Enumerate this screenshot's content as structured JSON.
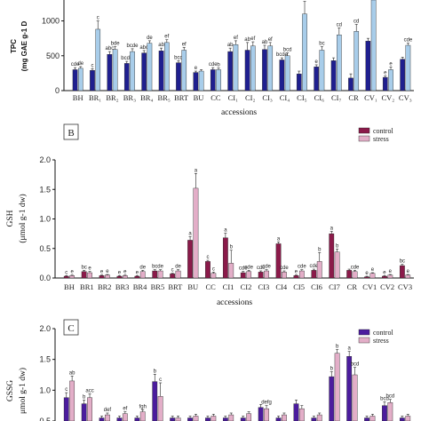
{
  "chart_data": [
    {
      "panel": "",
      "type": "bar",
      "ylabel": "TPC\n(mg GAE g-1 D",
      "xlabel": "accessions",
      "ylim": [
        0,
        1300
      ],
      "yticks": [
        "0",
        "500",
        "1000"
      ],
      "categories": [
        "BH",
        "BR₁",
        "BR₂",
        "BR₃",
        "BR₄",
        "BR₅",
        "BRT",
        "BU",
        "CC",
        "CI₁",
        "CI₂",
        "CI₃",
        "CI₄",
        "CI₅",
        "CI₆",
        "CI₇",
        "CR",
        "CV₁",
        "CV₂",
        "CV₃"
      ],
      "colors": [
        "#1f1f8f",
        "#a8cdea"
      ],
      "series": [
        {
          "name": "",
          "values": [
            300,
            290,
            520,
            390,
            540,
            570,
            400,
            260,
            300,
            560,
            580,
            590,
            440,
            240,
            340,
            430,
            180,
            710,
            190,
            450
          ],
          "errors": [
            30,
            25,
            40,
            30,
            35,
            40,
            30,
            20,
            30,
            50,
            110,
            60,
            30,
            40,
            30,
            40,
            60,
            40,
            20,
            30
          ],
          "letters": [
            "cde",
            "c",
            "abc",
            "bcde",
            "abc",
            "ab",
            "bcd",
            "e",
            "cde",
            "ab",
            "ab",
            "ab",
            "bcde",
            "",
            "e",
            "",
            "",
            "",
            "e",
            ""
          ]
        },
        {
          "name": "",
          "values": [
            320,
            880,
            590,
            560,
            680,
            690,
            580,
            280,
            300,
            660,
            640,
            640,
            500,
            1100,
            580,
            800,
            850,
            1300,
            300,
            650
          ],
          "errors": [
            25,
            120,
            40,
            40,
            35,
            40,
            40,
            20,
            25,
            55,
            60,
            50,
            40,
            180,
            50,
            100,
            100,
            0,
            40,
            30
          ],
          "letters": [
            "de",
            "c",
            "bde",
            "bcde",
            "de",
            "ef",
            "ef",
            "",
            "b",
            "ef",
            "ef",
            "ef",
            "bcd",
            "ab",
            "bc",
            "cd",
            "cd",
            "",
            "e",
            "cde"
          ]
        }
      ]
    },
    {
      "panel": "B",
      "type": "bar",
      "ylabel": "GSH\n(μmol g-1 dw)",
      "xlabel": "accessions",
      "ylim": [
        0,
        2.0
      ],
      "yticks": [
        "0.0",
        "0.5",
        "1.0",
        "1.5",
        "2.0"
      ],
      "legend": [
        "control",
        "stress"
      ],
      "legend_position": "top-right",
      "colors": [
        "#8b1a4a",
        "#e3aec8"
      ],
      "categories": [
        "BH",
        "BR1",
        "BR2",
        "BR3",
        "BR4",
        "BR5",
        "BRT",
        "BU",
        "CC",
        "CI1",
        "CI2",
        "CI3",
        "CI4",
        "CI5",
        "CI6",
        "CI7",
        "CR",
        "CV1",
        "CV2",
        "CV3"
      ],
      "series": [
        {
          "name": "control",
          "values": [
            0.03,
            0.11,
            0.04,
            0.03,
            0.03,
            0.12,
            0.07,
            0.64,
            0.28,
            0.68,
            0.09,
            0.1,
            0.58,
            0.04,
            0.13,
            0.75,
            0.13,
            0.02,
            0.03,
            0.21
          ],
          "errors": [
            0.01,
            0.02,
            0.01,
            0.01,
            0.01,
            0.02,
            0.01,
            0.06,
            0.02,
            0.08,
            0.02,
            0.02,
            0.03,
            0.01,
            0.02,
            0.04,
            0.02,
            0.01,
            0.01,
            0.02
          ],
          "letters": [
            "c",
            "bc",
            "e",
            "e",
            "e",
            "bc",
            "c",
            "a",
            "c",
            "a",
            "cde",
            "cde",
            "a",
            "e",
            "cde",
            "a",
            "",
            "e",
            "e",
            "bc"
          ]
        },
        {
          "name": "stress",
          "values": [
            0.04,
            0.09,
            0.05,
            0.04,
            0.11,
            0.12,
            0.12,
            1.52,
            0.08,
            0.25,
            0.11,
            0.12,
            0.1,
            0.12,
            0.28,
            0.44,
            0.11,
            0.08,
            0.05,
            0.05
          ],
          "errors": [
            0.01,
            0.02,
            0.01,
            0.01,
            0.02,
            0.02,
            0.02,
            0.25,
            0.02,
            0.22,
            0.02,
            0.02,
            0.02,
            0.02,
            0.15,
            0.05,
            0.02,
            0.01,
            0.01,
            0.01
          ],
          "letters": [
            "e",
            "e",
            "e",
            "e",
            "de",
            "de",
            "de",
            "a",
            "c",
            "b",
            "cde",
            "cde",
            "cde",
            "cde",
            "b",
            "b",
            "cde",
            "e",
            "e",
            "e"
          ]
        }
      ]
    },
    {
      "panel": "C",
      "type": "bar",
      "ylabel": "GSSG\nμmol g-1 dw)",
      "xlabel": "",
      "ylim": [
        0.5,
        2.0
      ],
      "yticks": [
        "0.5",
        "1.0",
        "1.5",
        "2.0"
      ],
      "legend": [
        "control",
        "stress"
      ],
      "legend_position": "top-right",
      "colors": [
        "#4b1c9e",
        "#e3aec8"
      ],
      "categories": [
        "BH",
        "BR1",
        "BR2",
        "BR3",
        "BR4",
        "BR5",
        "BRT",
        "BU",
        "CC",
        "CI1",
        "CI2",
        "CI3",
        "CI4",
        "CI5",
        "CI6",
        "CI7",
        "CR",
        "CV1",
        "CV2",
        "CV3"
      ],
      "series": [
        {
          "name": "control",
          "values": [
            0.88,
            0.78,
            0.55,
            0.55,
            0.55,
            1.14,
            0.55,
            0.55,
            0.55,
            0.55,
            0.55,
            0.72,
            0.55,
            0.78,
            0.55,
            1.22,
            1.55,
            0.55,
            0.75,
            0.55
          ],
          "errors": [
            0.08,
            0.06,
            0.03,
            0.03,
            0.03,
            0.12,
            0.03,
            0.03,
            0.03,
            0.03,
            0.03,
            0.05,
            0.03,
            0.06,
            0.03,
            0.08,
            0.08,
            0.03,
            0.06,
            0.03
          ],
          "letters": [
            "c",
            "b",
            "",
            "",
            "",
            "b",
            "",
            "",
            "",
            "",
            "",
            "",
            "",
            "",
            "",
            "b",
            "a",
            "",
            "bcd",
            ""
          ]
        },
        {
          "name": "stress",
          "values": [
            1.15,
            0.88,
            0.6,
            0.62,
            0.65,
            0.9,
            0.55,
            0.58,
            0.58,
            0.6,
            0.62,
            0.7,
            0.6,
            0.7,
            0.6,
            1.6,
            1.25,
            0.58,
            0.8,
            0.58
          ],
          "errors": [
            0.08,
            0.06,
            0.03,
            0.03,
            0.03,
            0.22,
            0.03,
            0.03,
            0.03,
            0.03,
            0.03,
            0.05,
            0.03,
            0.05,
            0.03,
            0.06,
            0.12,
            0.03,
            0.05,
            0.03
          ],
          "letters": [
            "ab",
            "acc",
            "def",
            "ef",
            "fgh",
            "c",
            "",
            "",
            "",
            "",
            "",
            "defg",
            "",
            "",
            "",
            "b",
            "bcd",
            "",
            "bcd",
            ""
          ]
        }
      ]
    }
  ]
}
